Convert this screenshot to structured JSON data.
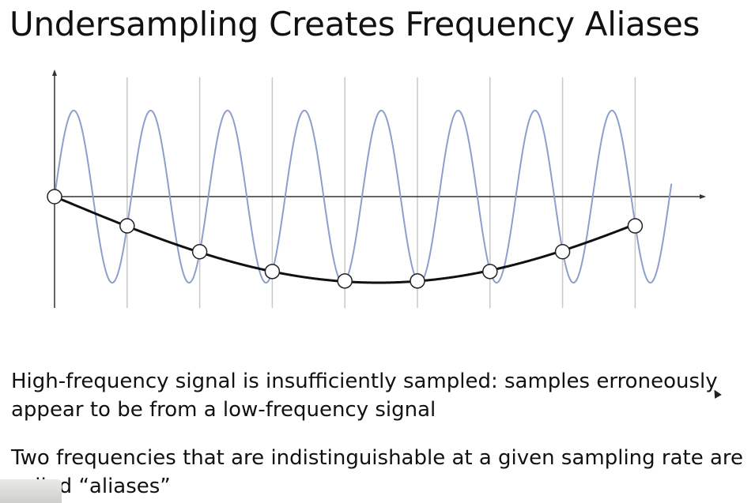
{
  "slide": {
    "title": "Undersampling Creates Frequency Aliases",
    "bullets": [
      "High-frequency signal is insufficiently sampled: samples erroneously appear to be from a low-frequency signal",
      "Two frequencies that are indistinguishable at a given sampling rate are called “aliases”"
    ]
  },
  "colors": {
    "high_frequency_signal": "#8d9fcc",
    "low_frequency_alias": "#111111",
    "sample_lines": "#c8c8c8",
    "axes": "#333333",
    "sample_marker_fill": "#ffffff"
  },
  "chart_data": {
    "type": "line",
    "title": "",
    "xlabel": "",
    "ylabel": "",
    "grid": "vertical lines at sample times",
    "sample_count": 9,
    "x_range": [
      0,
      8.5
    ],
    "y_range": [
      -1,
      1
    ],
    "series": [
      {
        "role": "high-frequency signal",
        "color": "#8d9fcc",
        "function": "sin(2*pi*f*t)",
        "cycles_per_sample_interval": 0.944
      },
      {
        "role": "low-frequency alias",
        "color": "#111111",
        "function": "-sin(2*pi*0.056*t)",
        "cycles_per_sample_interval": -0.056
      }
    ],
    "samples": [
      {
        "t": 0,
        "y": 0.0
      },
      {
        "t": 1,
        "y": -0.34
      },
      {
        "t": 2,
        "y": -0.64
      },
      {
        "t": 3,
        "y": -0.87
      },
      {
        "t": 4,
        "y": -0.98
      },
      {
        "t": 5,
        "y": -0.98
      },
      {
        "t": 6,
        "y": -0.87
      },
      {
        "t": 7,
        "y": -0.64
      },
      {
        "t": 8,
        "y": -0.34
      }
    ]
  }
}
